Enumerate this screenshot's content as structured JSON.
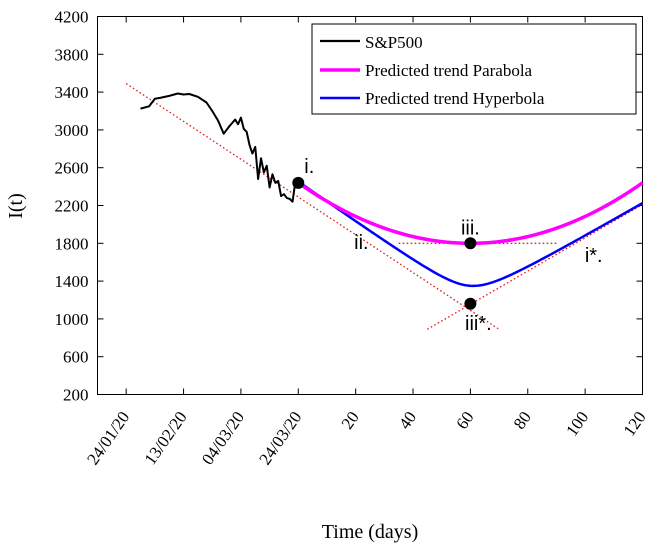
{
  "chart_data": {
    "type": "line",
    "xlabel": "Time (days)",
    "ylabel": "I(t)",
    "ylim": [
      200,
      4200
    ],
    "xlim": [
      -70,
      120
    ],
    "y_ticks": [
      200,
      600,
      1000,
      1400,
      1800,
      2200,
      2600,
      3000,
      3400,
      3800,
      4200
    ],
    "x_ticks": [
      {
        "x": -60,
        "label": "24/01/20"
      },
      {
        "x": -40,
        "label": "13/02/20"
      },
      {
        "x": -20,
        "label": "04/03/20"
      },
      {
        "x": 0,
        "label": "24/03/20"
      },
      {
        "x": 20,
        "label": "20"
      },
      {
        "x": 40,
        "label": "40"
      },
      {
        "x": 60,
        "label": "60"
      },
      {
        "x": 80,
        "label": "80"
      },
      {
        "x": 100,
        "label": "100"
      },
      {
        "x": 120,
        "label": "120"
      }
    ],
    "legend_position": "top-right",
    "series": [
      {
        "name": "S&P500",
        "color": "#000000",
        "x": [
          -55,
          -52,
          -50,
          -48,
          -45,
          -42,
          -40,
          -38,
          -35,
          -32,
          -30,
          -28,
          -26,
          -24,
          -22,
          -21,
          -20,
          -19,
          -18,
          -17,
          -16,
          -15,
          -14,
          -13,
          -12,
          -11,
          -10,
          -9,
          -8,
          -7,
          -6,
          -5,
          -4,
          -3,
          -2,
          -1
        ],
        "y": [
          3225,
          3250,
          3330,
          3340,
          3360,
          3385,
          3375,
          3380,
          3350,
          3290,
          3200,
          3100,
          2960,
          3040,
          3110,
          3060,
          3130,
          3010,
          2980,
          2840,
          2750,
          2820,
          2480,
          2700,
          2550,
          2620,
          2390,
          2530,
          2440,
          2460,
          2300,
          2320,
          2280,
          2270,
          2240,
          2460
        ]
      },
      {
        "name": "Predicted trend Parabola",
        "color": "#ff00ff",
        "type": "parabola",
        "vertex": [
          60,
          1800
        ],
        "start": [
          0,
          2440
        ],
        "x_range": [
          0,
          120
        ]
      },
      {
        "name": "Predicted trend Hyperbola",
        "color": "#0000ff",
        "type": "hyperbola",
        "center": [
          60,
          1160
        ],
        "slope_left": -21.3,
        "slope_right": 17.5,
        "vertex_y": 1350,
        "x_range": [
          0,
          120
        ]
      }
    ],
    "guide_lines": [
      {
        "x1": -60,
        "y1": 3490,
        "x2": 70,
        "y2": 890
      },
      {
        "x1": 45,
        "y1": 890,
        "x2": 120,
        "y2": 2210
      },
      {
        "x1": 35,
        "y1": 1800,
        "x2": 90,
        "y2": 1800
      }
    ],
    "points": [
      {
        "x": 0,
        "y": 2440,
        "label": "i."
      },
      {
        "x": 60,
        "y": 1800,
        "label": "iii."
      },
      {
        "x": 60,
        "y": 1160,
        "label": "iii*."
      }
    ],
    "annotations": [
      {
        "x": 22,
        "y": 1740,
        "label": "ii."
      },
      {
        "x": 103,
        "y": 1600,
        "label": "i*."
      }
    ]
  }
}
